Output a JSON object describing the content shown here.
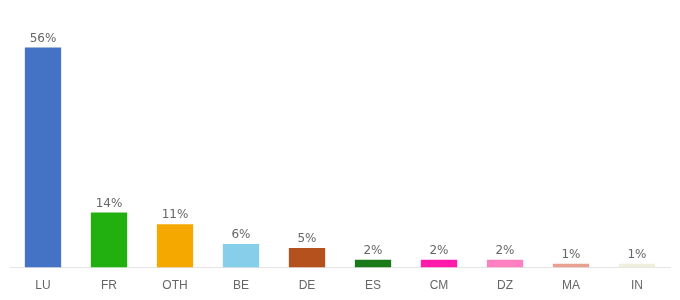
{
  "chart_data": {
    "type": "bar",
    "categories": [
      "LU",
      "FR",
      "OTH",
      "BE",
      "DE",
      "ES",
      "CM",
      "DZ",
      "MA",
      "IN"
    ],
    "values": [
      56,
      14,
      11,
      6,
      5,
      2,
      2,
      2,
      1,
      1
    ],
    "value_labels": [
      "56%",
      "14%",
      "11%",
      "6%",
      "5%",
      "2%",
      "2%",
      "2%",
      "1%",
      "1%"
    ],
    "colors": [
      "#4472c4",
      "#22b010",
      "#f5a800",
      "#87ceeb",
      "#b5511c",
      "#1a7a1a",
      "#ff1aaa",
      "#ff80c0",
      "#e8a090",
      "#f0eedc"
    ],
    "ylim": [
      0,
      63
    ],
    "grid": false,
    "data_labels": true,
    "tick_labels": "x"
  }
}
